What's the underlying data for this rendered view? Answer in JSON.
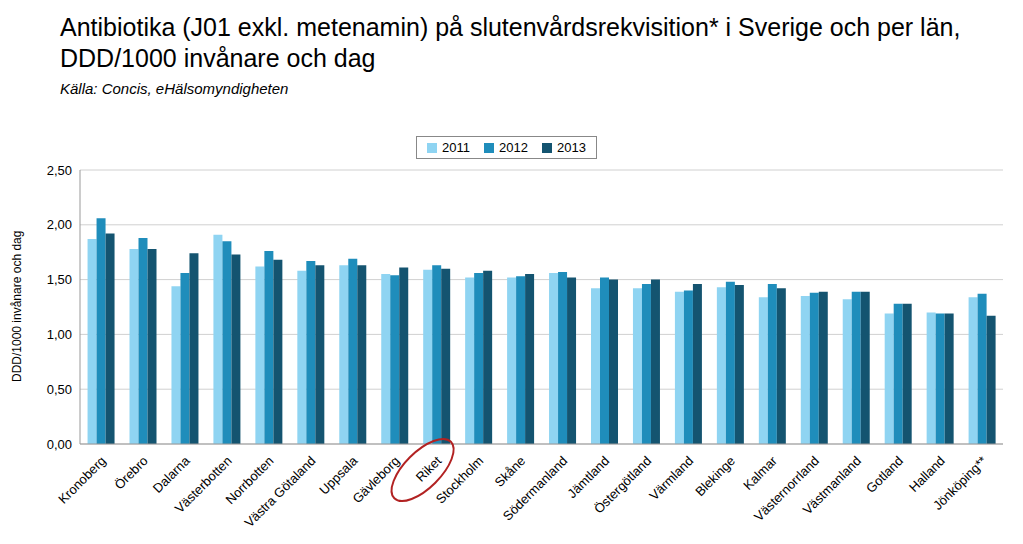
{
  "chart_data": {
    "type": "bar",
    "title": "Antibiotika (J01 exkl. metenamin) på slutenvårdsrekvisition* i Sverige och per län, DDD/1000 invånare och dag",
    "subtitle": "Källa: Concis, eHälsomyndigheten",
    "y_label": "DDD/1000 invånare och dag",
    "categories": [
      "Kronoberg",
      "Örebro",
      "Dalarna",
      "Västerbotten",
      "Norrbotten",
      "Västra Götaland",
      "Uppsala",
      "Gävleborg",
      "Riket",
      "Stockholm",
      "Skåne",
      "Södermanland",
      "Jämtland",
      "Östergötland",
      "Värmland",
      "Blekinge",
      "Kalmar",
      "Västernorrland",
      "Västmanland",
      "Gotland",
      "Halland",
      "Jönköping**"
    ],
    "series": [
      {
        "name": "2011",
        "color": "#8fd4f2",
        "values": [
          1.87,
          1.78,
          1.44,
          1.91,
          1.62,
          1.58,
          1.63,
          1.55,
          1.59,
          1.52,
          1.52,
          1.56,
          1.42,
          1.42,
          1.39,
          1.43,
          1.34,
          1.35,
          1.32,
          1.19,
          1.2,
          1.34
        ]
      },
      {
        "name": "2012",
        "color": "#1f8dbb",
        "values": [
          2.06,
          1.88,
          1.56,
          1.85,
          1.76,
          1.67,
          1.69,
          1.54,
          1.63,
          1.56,
          1.53,
          1.57,
          1.52,
          1.46,
          1.4,
          1.48,
          1.46,
          1.38,
          1.39,
          1.28,
          1.19,
          1.37
        ]
      },
      {
        "name": "2013",
        "color": "#145470",
        "values": [
          1.92,
          1.78,
          1.74,
          1.73,
          1.68,
          1.63,
          1.63,
          1.61,
          1.6,
          1.58,
          1.55,
          1.52,
          1.5,
          1.5,
          1.46,
          1.45,
          1.42,
          1.39,
          1.39,
          1.28,
          1.19,
          1.17
        ]
      }
    ],
    "ylim": [
      0,
      2.5
    ],
    "yticks": [
      {
        "value": 0,
        "label": "0,00"
      },
      {
        "value": 0.5,
        "label": "0,50"
      },
      {
        "value": 1,
        "label": "1,00"
      },
      {
        "value": 1.5,
        "label": "1,50"
      },
      {
        "value": 2,
        "label": "2,00"
      },
      {
        "value": 2.5,
        "label": "2,50"
      }
    ],
    "grid": true,
    "legend": "top"
  }
}
